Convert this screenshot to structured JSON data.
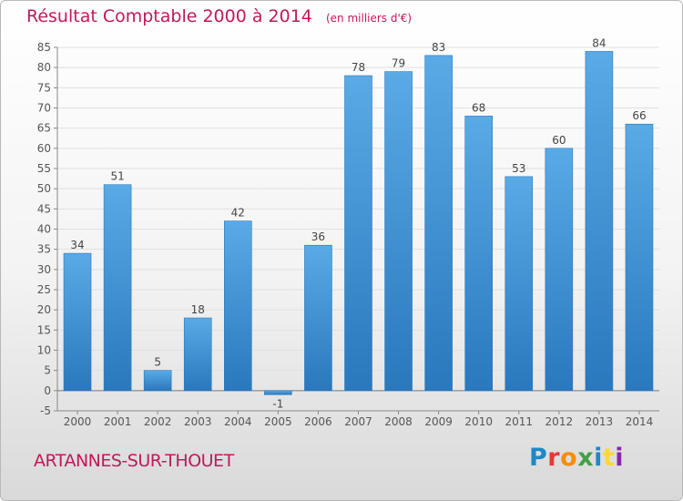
{
  "header": {
    "title": "Résultat Comptable 2000 à 2014",
    "subtitle": "(en milliers d'€)"
  },
  "footer": {
    "town": "ARTANNES-SUR-THOUET",
    "logo": "Proxiti",
    "logo_colors": [
      "#1e88c8",
      "#e53935",
      "#fb8c00",
      "#43a047",
      "#1e88c8",
      "#fdd835",
      "#8e24aa"
    ]
  },
  "chart_data": {
    "type": "bar",
    "categories": [
      "2000",
      "2001",
      "2002",
      "2003",
      "2004",
      "2005",
      "2006",
      "2007",
      "2008",
      "2009",
      "2010",
      "2011",
      "2012",
      "2013",
      "2014"
    ],
    "values": [
      34,
      51,
      5,
      18,
      42,
      -1,
      36,
      78,
      79,
      83,
      68,
      53,
      60,
      84,
      66
    ],
    "ylim": [
      -5,
      85
    ],
    "yticks": [
      -5,
      0,
      5,
      10,
      15,
      20,
      25,
      30,
      35,
      40,
      45,
      50,
      55,
      60,
      65,
      70,
      75,
      80,
      85
    ],
    "grid": true,
    "bar_color": "#3d8fd0",
    "bar_color_light": "#5aaae6",
    "bar_color_dark": "#2a78bd"
  }
}
